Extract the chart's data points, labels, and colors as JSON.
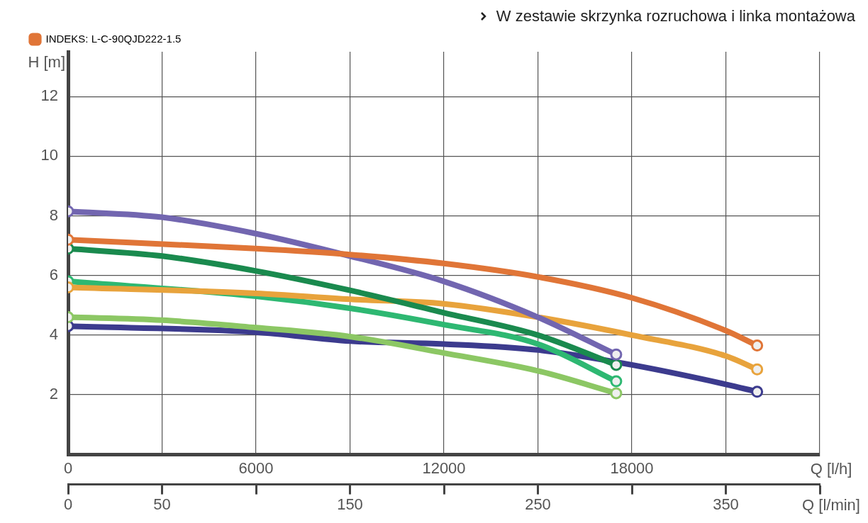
{
  "chart_data": {
    "type": "line",
    "annotations": [
      "W zestawie skrzynka rozruchowa i linka montażowa"
    ],
    "xlabel": "Q [l/h]",
    "ylabel": "H [m]",
    "x2label": "Q [l/min]",
    "xlim": [
      0,
      24000
    ],
    "xticks": [
      0,
      {
        "value": 3000,
        "label": null
      },
      6000,
      {
        "value": 9000,
        "label": null
      },
      12000,
      {
        "value": 15000,
        "label": null
      },
      18000,
      {
        "value": 21000,
        "label": null
      },
      {
        "value": 24000,
        "label": null
      }
    ],
    "x2lim": [
      0,
      400
    ],
    "x2ticks": [
      0,
      50,
      {
        "value": 100,
        "label": null
      },
      150,
      {
        "value": 200,
        "label": null
      },
      250,
      {
        "value": 300,
        "label": null
      },
      350,
      {
        "value": 400,
        "label": null
      }
    ],
    "ylim": [
      0,
      13.5
    ],
    "yticks": [
      {
        "value": 0,
        "label": null
      },
      2,
      4,
      6,
      8,
      10,
      12
    ],
    "grid": true,
    "legend": "top left",
    "line_style": "solid",
    "series": [
      {
        "color": "#3c3b8e",
        "x": [
          0,
          6000,
          9000,
          12000,
          15000,
          18000,
          21000,
          22000
        ],
        "values": [
          4.3,
          4.1,
          3.8,
          3.7,
          3.5,
          3.0,
          2.35,
          2.1
        ]
      },
      {
        "color": "#8cc764",
        "x": [
          0,
          3000,
          6000,
          9000,
          12000,
          15000,
          17500
        ],
        "values": [
          4.6,
          4.5,
          4.25,
          3.95,
          3.4,
          2.8,
          2.05
        ]
      },
      {
        "color": "#2eb872",
        "x": [
          0,
          6000,
          9000,
          12000,
          15000,
          17500
        ],
        "values": [
          5.8,
          5.3,
          4.9,
          4.35,
          3.7,
          2.45
        ]
      },
      {
        "color": "#e8a33c",
        "x": [
          0,
          6000,
          9000,
          12000,
          15000,
          18000,
          21000,
          22000
        ],
        "values": [
          5.6,
          5.4,
          5.2,
          5.05,
          4.6,
          4.0,
          3.3,
          2.85
        ]
      },
      {
        "color": "#1a8a4e",
        "x": [
          0,
          3000,
          6000,
          9000,
          12000,
          15000,
          17500
        ],
        "values": [
          6.9,
          6.65,
          6.15,
          5.5,
          4.75,
          4.0,
          3.0
        ]
      },
      {
        "color": "#7266b0",
        "x": [
          0,
          3000,
          6000,
          9000,
          12000,
          15000,
          17500
        ],
        "values": [
          8.15,
          7.95,
          7.4,
          6.65,
          5.8,
          4.6,
          3.35
        ]
      },
      {
        "name": "INDEKS: L-C-90QJD222-1.5",
        "color": "#e07537",
        "x": [
          0,
          6000,
          9000,
          12000,
          15000,
          18000,
          21000,
          22000
        ],
        "values": [
          7.2,
          6.9,
          6.7,
          6.4,
          5.95,
          5.25,
          4.15,
          3.65
        ]
      }
    ]
  }
}
